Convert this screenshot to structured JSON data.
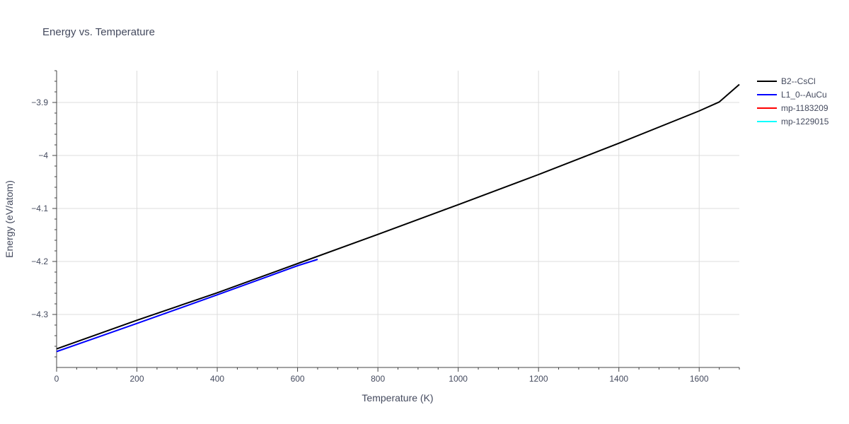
{
  "chart_data": {
    "type": "line",
    "title": "Energy vs. Temperature",
    "xlabel": "Temperature (K)",
    "ylabel": "Energy (eV/atom)",
    "xlim": [
      0,
      1700
    ],
    "ylim": [
      -4.4,
      -3.84
    ],
    "x_ticks": [
      0,
      200,
      400,
      600,
      800,
      1000,
      1200,
      1400,
      1600
    ],
    "x_tick_labels": [
      "0",
      "200",
      "400",
      "600",
      "800",
      "1000",
      "1200",
      "1400",
      "1600"
    ],
    "y_ticks": [
      -4.3,
      -4.2,
      -4.1,
      -4.0,
      -3.9
    ],
    "y_tick_labels": [
      "−4.3",
      "−4.2",
      "−4.1",
      "−4",
      "−3.9"
    ],
    "grid": true,
    "legend_position": "right",
    "series": [
      {
        "name": "B2--CsCl",
        "color": "#000000",
        "x": [
          0,
          200,
          400,
          600,
          800,
          1000,
          1200,
          1400,
          1600,
          1650,
          1700
        ],
        "y": [
          -4.365,
          -4.311,
          -4.259,
          -4.204,
          -4.149,
          -4.093,
          -4.036,
          -3.977,
          -3.916,
          -3.899,
          -3.866
        ]
      },
      {
        "name": "L1_0--AuCu",
        "color": "#0000ff",
        "x": [
          0,
          200,
          400,
          600,
          650
        ],
        "y": [
          -4.37,
          -4.317,
          -4.263,
          -4.208,
          -4.196
        ]
      },
      {
        "name": "mp-1183209",
        "color": "#ff0000",
        "x": [],
        "y": []
      },
      {
        "name": "mp-1229015",
        "color": "#00ffff",
        "x": [],
        "y": []
      }
    ]
  }
}
